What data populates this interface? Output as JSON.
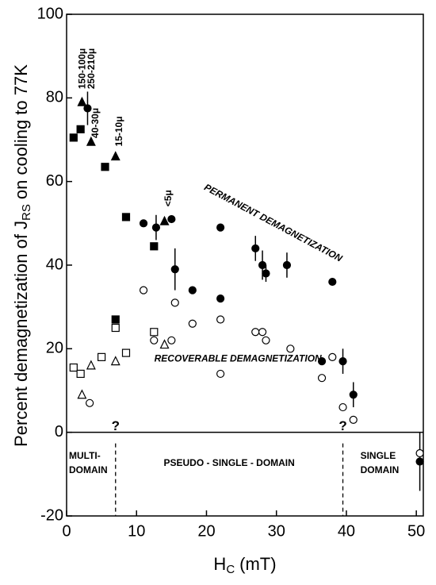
{
  "chart_data": {
    "type": "scatter",
    "xlabel": {
      "main": "H",
      "subscript": "C",
      "suffix": "(mT)"
    },
    "ylabel": {
      "main": "Percent demagnetization of J",
      "subscript": "RS",
      "suffix": "on cooling to 77K"
    },
    "xlim": [
      0,
      51
    ],
    "ylim": [
      -20,
      100
    ],
    "xticks": [
      0,
      10,
      20,
      30,
      40,
      50
    ],
    "yticks": [
      -20,
      0,
      20,
      40,
      60,
      80,
      100
    ],
    "color": "#000000",
    "series": [
      {
        "marker": "square",
        "filled": true,
        "x": [
          1,
          2,
          5.5,
          7,
          8.5,
          12.5
        ],
        "values": [
          70.5,
          72.5,
          63.5,
          27,
          51.5,
          44.5
        ]
      },
      {
        "marker": "square",
        "filled": false,
        "x": [
          1,
          2,
          5,
          7,
          8.5,
          12.5
        ],
        "values": [
          15.5,
          14,
          18,
          25,
          19,
          24
        ]
      },
      {
        "marker": "triangle",
        "filled": true,
        "x": [
          2.2,
          3.5,
          7,
          14
        ],
        "values": [
          79,
          69.5,
          66,
          50.5
        ]
      },
      {
        "marker": "triangle",
        "filled": false,
        "x": [
          2.2,
          3.5,
          7,
          14
        ],
        "values": [
          9,
          16,
          17,
          21
        ]
      },
      {
        "marker": "circle",
        "filled": true,
        "x": [
          3,
          11,
          12.8,
          15,
          15.5,
          18,
          22,
          22,
          27,
          28,
          28.5,
          31.5,
          36.5,
          38,
          39.5,
          41,
          50.5
        ],
        "values": [
          77.5,
          50,
          49,
          51,
          39,
          34,
          49,
          32,
          44,
          40,
          38,
          40,
          17,
          36,
          17,
          9,
          -7
        ],
        "errors": [
          4,
          null,
          3,
          null,
          5,
          null,
          null,
          null,
          3,
          3.5,
          2,
          3,
          null,
          null,
          3,
          3,
          7
        ]
      },
      {
        "marker": "circle",
        "filled": false,
        "x": [
          3.3,
          11,
          12.5,
          15,
          15.5,
          18,
          22,
          22,
          27,
          28,
          28.5,
          32,
          36.5,
          38,
          39.5,
          41,
          50.5
        ],
        "values": [
          7,
          34,
          22,
          22,
          31,
          26,
          27,
          14,
          24,
          24,
          22,
          20,
          13,
          18,
          6,
          3,
          -5
        ]
      }
    ],
    "size_labels": [
      "150-100μ",
      "250-210μ",
      "40-30μ",
      "15-10μ",
      "<5μ"
    ],
    "annotations": {
      "permanent": "PERMANENT DEMAGNETIZATION",
      "recoverable": "RECOVERABLE DEMAGNETIZATION"
    },
    "boundaries": [
      7,
      39.5
    ],
    "boundary_label": "?",
    "regions": [
      "MULTI-",
      "DOMAIN",
      "PSEUDO - SINGLE - DOMAIN",
      "SINGLE",
      "DOMAIN"
    ]
  }
}
